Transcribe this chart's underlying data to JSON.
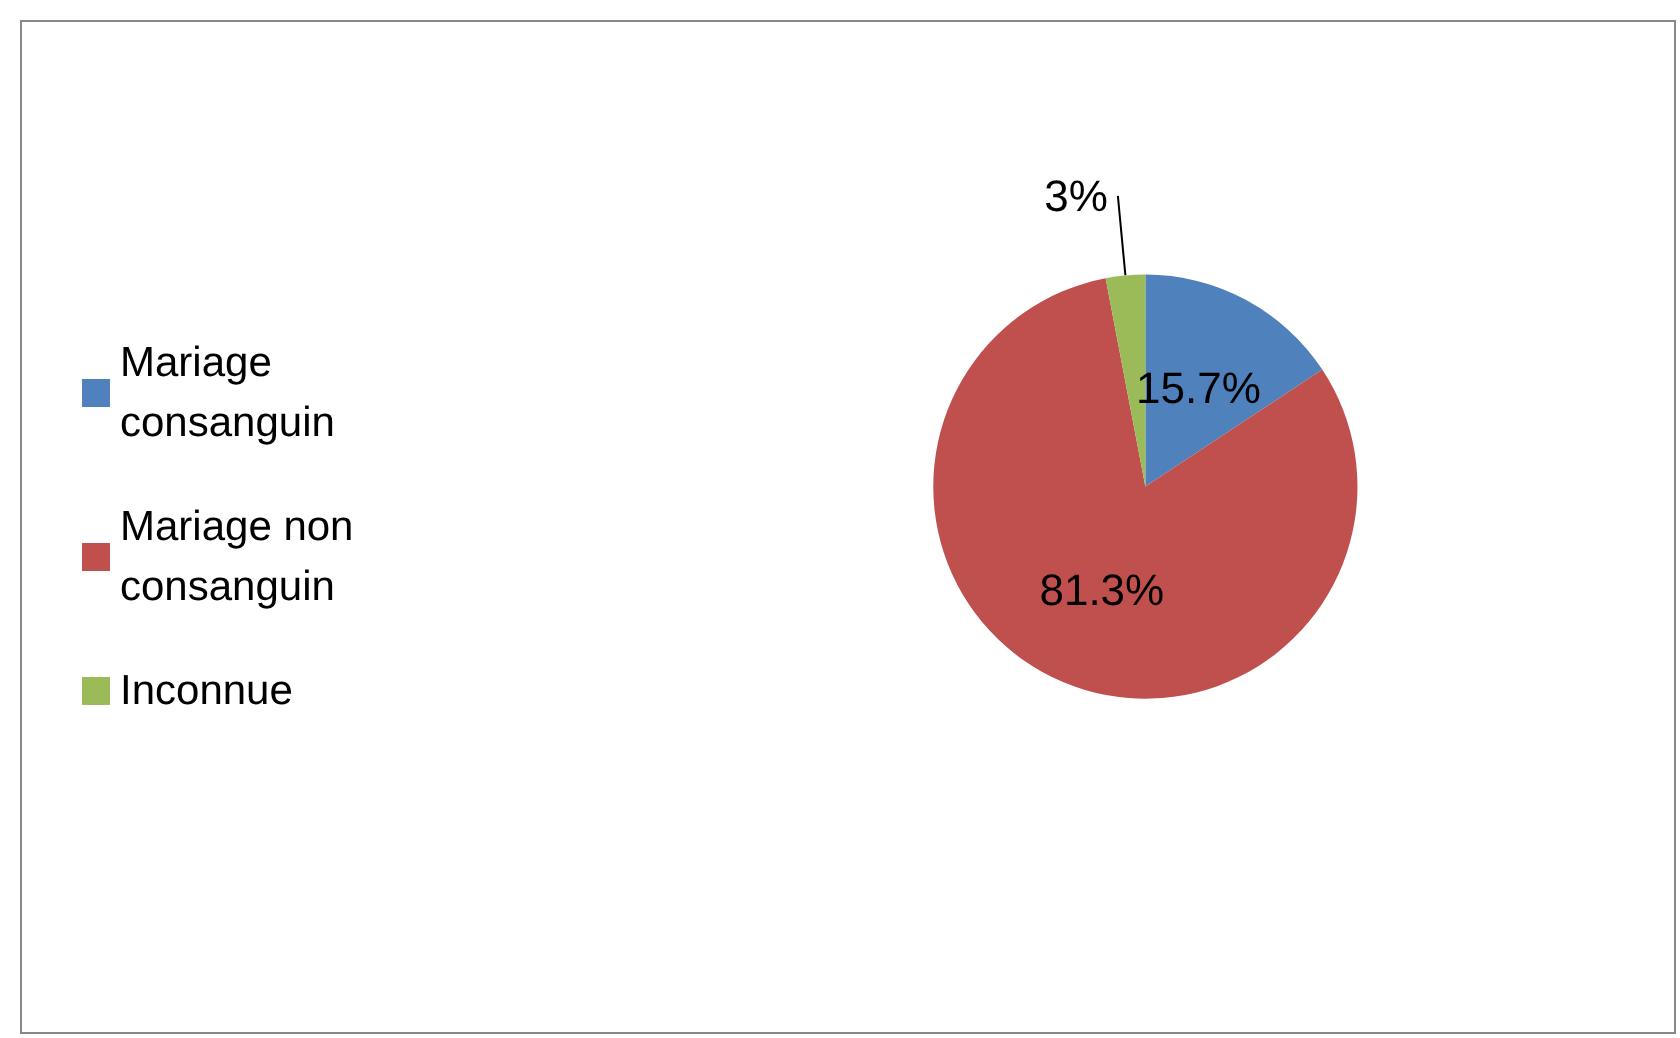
{
  "chart_data": {
    "type": "pie",
    "categories": [
      "Mariage consanguin",
      "Mariage non consanguin",
      "Inconnue"
    ],
    "values": [
      15.7,
      81.3,
      3
    ],
    "colors": [
      "#4f81bd",
      "#c0504d",
      "#9bbb59"
    ],
    "value_labels": [
      "15.7%",
      "81.3%",
      "3%"
    ],
    "legend": "left"
  }
}
